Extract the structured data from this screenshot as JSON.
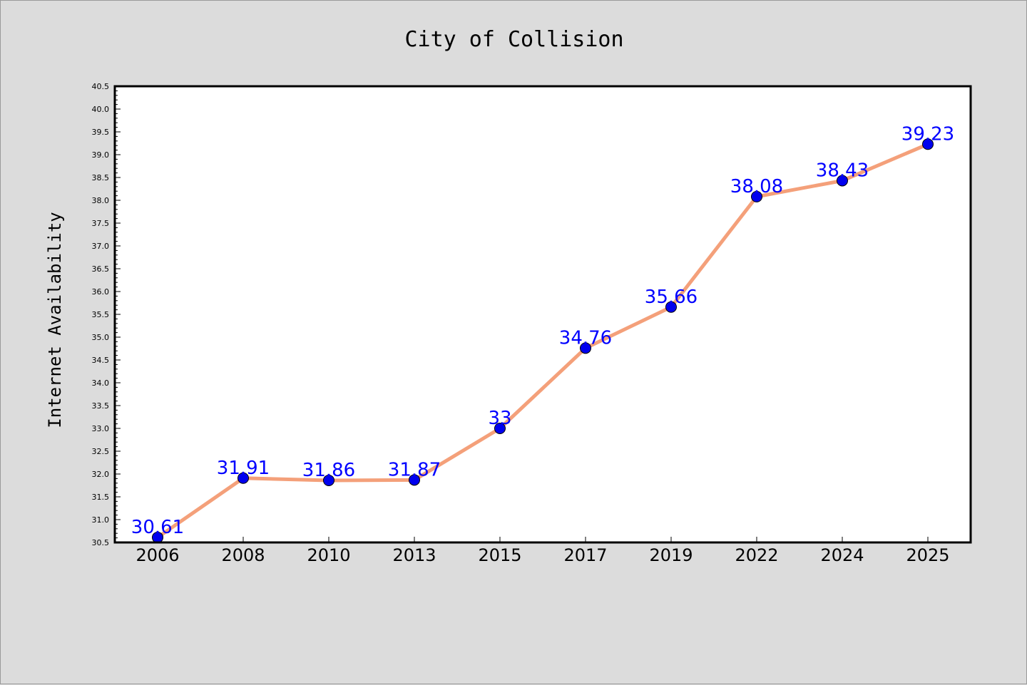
{
  "chart_data": {
    "type": "line",
    "title": "City of Collision",
    "xlabel": "",
    "ylabel": "Internet Availability",
    "categories": [
      "2006",
      "2008",
      "2010",
      "2013",
      "2015",
      "2017",
      "2019",
      "2022",
      "2024",
      "2025"
    ],
    "series": [
      {
        "values": [
          30.61,
          31.91,
          31.86,
          31.87,
          33,
          34.76,
          35.66,
          38.08,
          38.43,
          39.23
        ],
        "labels": [
          "30.61",
          "31.91",
          "31.86",
          "31.87",
          "33",
          "34.76",
          "35.66",
          "38.08",
          "38.43",
          "39.23"
        ],
        "line_color": "#f4a07a",
        "marker_color": "#0000ee"
      }
    ],
    "ylim": [
      30.5,
      40.5
    ],
    "yticks": [
      "30.5",
      "31.0",
      "31.5",
      "32.0",
      "32.5",
      "33.0",
      "33.5",
      "34.0",
      "34.5",
      "35.0",
      "35.5",
      "36.0",
      "36.5",
      "37.0",
      "37.5",
      "38.0",
      "38.5",
      "39.0",
      "39.5",
      "40.0",
      "40.5"
    ],
    "grid": false,
    "legend": "none",
    "background_color": "#dcdcdc",
    "plot_background_color": "#ffffff",
    "label_color": "#0000ff"
  }
}
